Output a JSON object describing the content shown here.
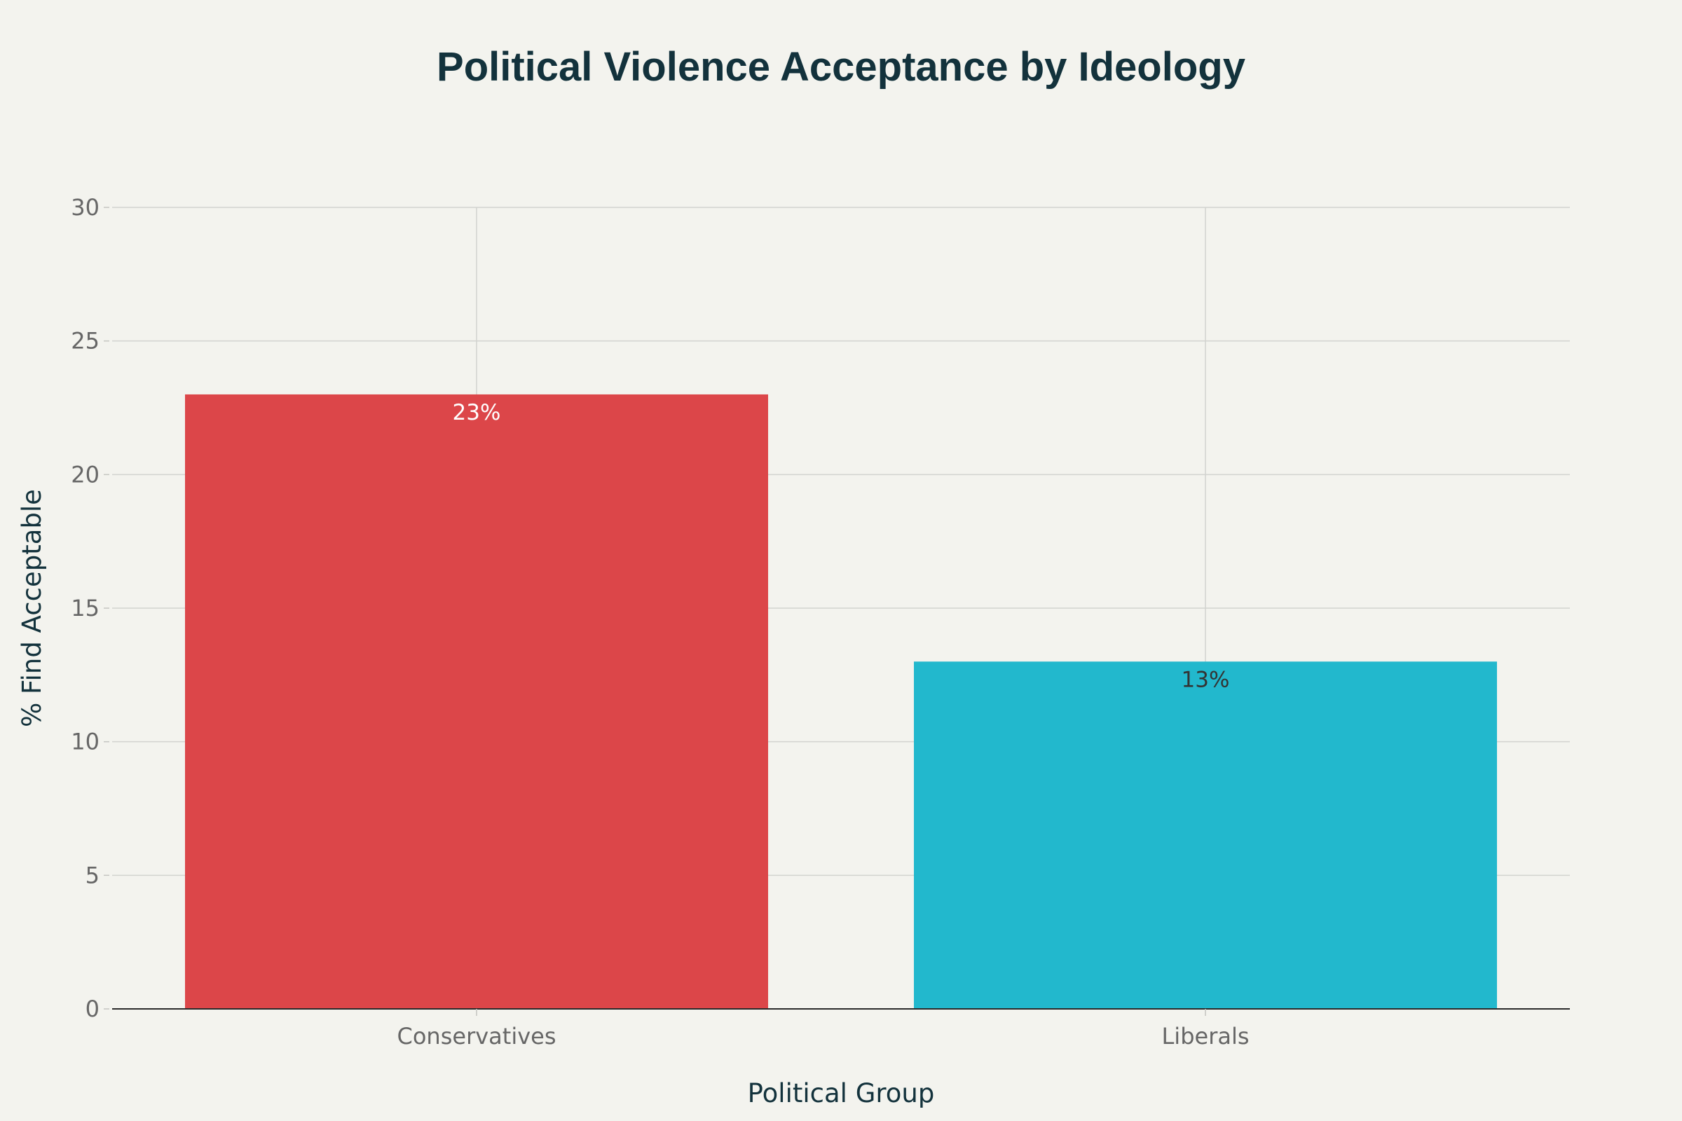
{
  "chart_data": {
    "type": "bar",
    "title": "Political Violence Acceptance by Ideology",
    "xlabel": "Political Group",
    "ylabel": "% Find Acceptable",
    "categories": [
      "Conservatives",
      "Liberals"
    ],
    "values": [
      23,
      13
    ],
    "data_labels": [
      "23%",
      "13%"
    ],
    "colors": [
      "#dc4649",
      "#22b8cd"
    ],
    "data_label_colors": [
      "#ffffff",
      "#333333"
    ],
    "ylim": [
      0,
      30
    ],
    "yticks": [
      0,
      5,
      10,
      15,
      20,
      25,
      30
    ],
    "grid": true,
    "legend": "none"
  }
}
